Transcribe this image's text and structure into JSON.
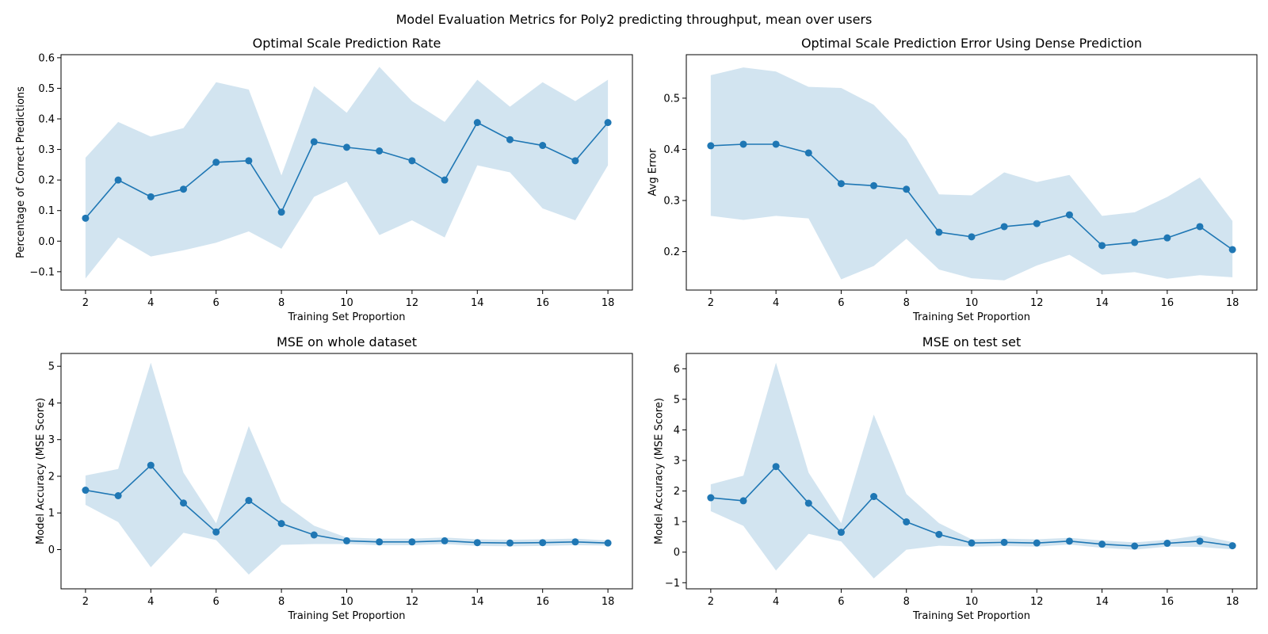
{
  "figure": {
    "suptitle": "Model Evaluation Metrics for Poly2 predicting throughput, mean over users"
  },
  "colors": {
    "line": "#1f77b4",
    "band": "#1f77b4",
    "axes": "#000000",
    "background": "#ffffff"
  },
  "chart_data": [
    {
      "type": "line",
      "title": "Optimal Scale Prediction Rate",
      "xlabel": "Training Set Proportion",
      "ylabel": "Percentage of Correct Predictions",
      "xlim": [
        1.25,
        18.75
      ],
      "ylim": [
        -0.16,
        0.61
      ],
      "xticks": [
        2,
        4,
        6,
        8,
        10,
        12,
        14,
        16,
        18
      ],
      "xtick_labels": [
        "2",
        "4",
        "6",
        "8",
        "10",
        "12",
        "14",
        "16",
        "18"
      ],
      "yticks": [
        -0.1,
        0.0,
        0.1,
        0.2,
        0.3,
        0.4,
        0.5,
        0.6
      ],
      "ytick_labels": [
        "−0.1",
        "0.0",
        "0.1",
        "0.2",
        "0.3",
        "0.4",
        "0.5",
        "0.6"
      ],
      "x": [
        2,
        3,
        4,
        5,
        6,
        7,
        8,
        9,
        10,
        11,
        12,
        13,
        14,
        15,
        16,
        17,
        18
      ],
      "y": [
        0.075,
        0.2,
        0.145,
        0.17,
        0.258,
        0.263,
        0.095,
        0.325,
        0.307,
        0.295,
        0.263,
        0.2,
        0.388,
        0.332,
        0.313,
        0.263,
        0.388
      ],
      "upper": [
        0.273,
        0.39,
        0.342,
        0.37,
        0.52,
        0.496,
        0.215,
        0.507,
        0.42,
        0.57,
        0.458,
        0.39,
        0.528,
        0.44,
        0.52,
        0.458,
        0.528
      ],
      "lower": [
        -0.122,
        0.012,
        -0.05,
        -0.03,
        -0.005,
        0.032,
        -0.025,
        0.145,
        0.195,
        0.02,
        0.068,
        0.012,
        0.248,
        0.225,
        0.107,
        0.068,
        0.248
      ]
    },
    {
      "type": "line",
      "title": "Optimal Scale Prediction Error Using Dense Prediction",
      "xlabel": "Training Set Proportion",
      "ylabel": "Avg Error",
      "xlim": [
        1.25,
        18.75
      ],
      "ylim": [
        0.125,
        0.585
      ],
      "xticks": [
        2,
        4,
        6,
        8,
        10,
        12,
        14,
        16,
        18
      ],
      "xtick_labels": [
        "2",
        "4",
        "6",
        "8",
        "10",
        "12",
        "14",
        "16",
        "18"
      ],
      "yticks": [
        0.2,
        0.3,
        0.4,
        0.5
      ],
      "ytick_labels": [
        "0.2",
        "0.3",
        "0.4",
        "0.5"
      ],
      "x": [
        2,
        3,
        4,
        5,
        6,
        7,
        8,
        9,
        10,
        11,
        12,
        13,
        14,
        15,
        16,
        17,
        18
      ],
      "y": [
        0.407,
        0.41,
        0.41,
        0.393,
        0.333,
        0.329,
        0.322,
        0.238,
        0.229,
        0.249,
        0.255,
        0.272,
        0.212,
        0.218,
        0.227,
        0.249,
        0.204
      ],
      "upper": [
        0.545,
        0.56,
        0.552,
        0.522,
        0.52,
        0.487,
        0.42,
        0.312,
        0.31,
        0.355,
        0.336,
        0.35,
        0.27,
        0.277,
        0.307,
        0.345,
        0.26
      ],
      "lower": [
        0.27,
        0.262,
        0.27,
        0.265,
        0.146,
        0.172,
        0.225,
        0.165,
        0.148,
        0.144,
        0.173,
        0.194,
        0.155,
        0.16,
        0.147,
        0.154,
        0.15
      ]
    },
    {
      "type": "line",
      "title": "MSE on whole dataset",
      "xlabel": "Training Set Proportion",
      "ylabel": "Model Accuracy (MSE Score)",
      "xlim": [
        1.25,
        18.75
      ],
      "ylim": [
        -1.07,
        5.35
      ],
      "xticks": [
        2,
        4,
        6,
        8,
        10,
        12,
        14,
        16,
        18
      ],
      "xtick_labels": [
        "2",
        "4",
        "6",
        "8",
        "10",
        "12",
        "14",
        "16",
        "18"
      ],
      "yticks": [
        0,
        1,
        2,
        3,
        4,
        5
      ],
      "ytick_labels": [
        "0",
        "1",
        "2",
        "3",
        "4",
        "5"
      ],
      "x": [
        2,
        3,
        4,
        5,
        6,
        7,
        8,
        9,
        10,
        11,
        12,
        13,
        14,
        15,
        16,
        17,
        18
      ],
      "y": [
        1.62,
        1.47,
        2.3,
        1.27,
        0.48,
        1.34,
        0.71,
        0.4,
        0.24,
        0.21,
        0.21,
        0.24,
        0.19,
        0.18,
        0.19,
        0.21,
        0.18
      ],
      "upper": [
        2.02,
        2.2,
        5.1,
        2.1,
        0.72,
        3.37,
        1.3,
        0.65,
        0.33,
        0.3,
        0.3,
        0.33,
        0.28,
        0.27,
        0.28,
        0.3,
        0.25
      ],
      "lower": [
        1.22,
        0.75,
        -0.48,
        0.46,
        0.26,
        -0.68,
        0.13,
        0.15,
        0.15,
        0.12,
        0.12,
        0.15,
        0.1,
        0.09,
        0.1,
        0.12,
        0.11
      ]
    },
    {
      "type": "line",
      "title": "MSE on test set",
      "xlabel": "Training Set Proportion",
      "ylabel": "Model Accuracy (MSE Score)",
      "xlim": [
        1.25,
        18.75
      ],
      "ylim": [
        -1.2,
        6.5
      ],
      "xticks": [
        2,
        4,
        6,
        8,
        10,
        12,
        14,
        16,
        18
      ],
      "xtick_labels": [
        "2",
        "4",
        "6",
        "8",
        "10",
        "12",
        "14",
        "16",
        "18"
      ],
      "yticks": [
        -1,
        0,
        1,
        2,
        3,
        4,
        5,
        6
      ],
      "ytick_labels": [
        "−1",
        "0",
        "1",
        "2",
        "3",
        "4",
        "5",
        "6"
      ],
      "x": [
        2,
        3,
        4,
        5,
        6,
        7,
        8,
        9,
        10,
        11,
        12,
        13,
        14,
        15,
        16,
        17,
        18
      ],
      "y": [
        1.78,
        1.68,
        2.8,
        1.6,
        0.65,
        1.82,
        0.99,
        0.58,
        0.3,
        0.32,
        0.3,
        0.36,
        0.26,
        0.2,
        0.29,
        0.36,
        0.21
      ],
      "upper": [
        2.22,
        2.5,
        6.2,
        2.6,
        0.95,
        4.5,
        1.9,
        0.95,
        0.42,
        0.44,
        0.42,
        0.47,
        0.38,
        0.32,
        0.4,
        0.55,
        0.33
      ],
      "lower": [
        1.34,
        0.86,
        -0.6,
        0.6,
        0.35,
        -0.86,
        0.08,
        0.21,
        0.18,
        0.2,
        0.18,
        0.25,
        0.14,
        0.08,
        0.18,
        0.17,
        0.09
      ]
    }
  ]
}
